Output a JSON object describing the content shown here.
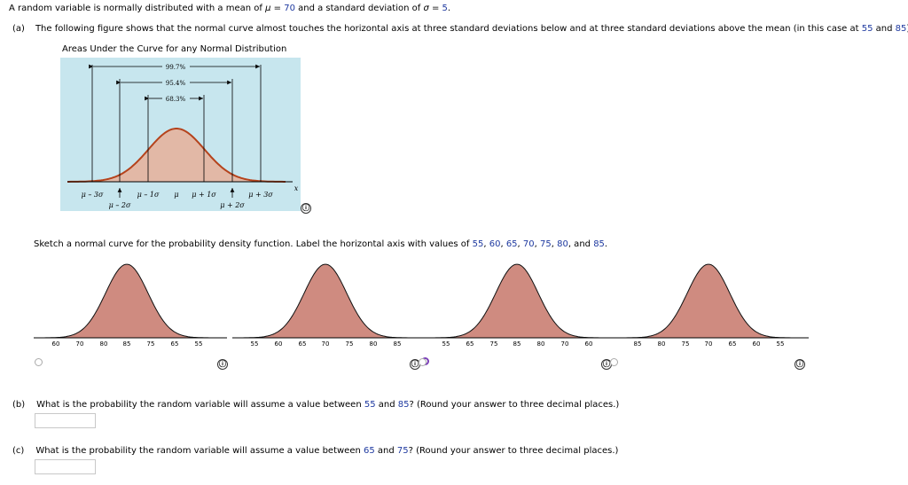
{
  "intro": {
    "prefix": "A random variable is normally distributed with a mean of ",
    "mu": "μ",
    "eq1": " = ",
    "mean": "70",
    "mid": " and a standard deviation of ",
    "sigma": "σ",
    "eq2": " = ",
    "sd": "5",
    "end": "."
  },
  "part_a": {
    "label": "(a)",
    "text": "The following figure shows that the normal curve almost touches the horizontal axis at three standard deviations below and at three standard deviations above the mean (in this case at ",
    "low": "55",
    "and": " and ",
    "high": "85",
    "end": ")."
  },
  "figure": {
    "title": "Areas Under the Curve for any Normal Distribution",
    "pct_3": "99.7%",
    "pct_2": "95.4%",
    "pct_1": "68.3%",
    "lbl_m3": "μ – 3σ",
    "lbl_m2": "μ – 2σ",
    "lbl_m1": "μ – 1σ",
    "lbl_mu": "μ",
    "lbl_p1": "μ + 1σ",
    "lbl_p2": "μ + 2σ",
    "lbl_p3": "μ + 3σ",
    "lbl_x": "x",
    "colors": {
      "panel": "#c7e6ee",
      "fill": "#e2b8a6",
      "curve": "#b5431c"
    }
  },
  "sketch": {
    "prefix": "Sketch a normal curve for the probability density function. Label the horizontal axis with values of ",
    "v1": "55",
    "sep1": ", ",
    "v2": "60",
    "sep2": ", ",
    "v3": "65",
    "sep3": ", ",
    "v4": "70",
    "sep4": ", ",
    "v5": "75",
    "sep5": ", ",
    "v6": "80",
    "sep6": ", and ",
    "v7": "85",
    "end": "."
  },
  "options": [
    {
      "ticks": [
        "60",
        "70",
        "80",
        "85",
        "75",
        "65",
        "55"
      ],
      "selected": false
    },
    {
      "ticks": [
        "55",
        "60",
        "65",
        "70",
        "75",
        "80",
        "85"
      ],
      "selected": true
    },
    {
      "ticks": [
        "55",
        "65",
        "75",
        "85",
        "80",
        "70",
        "60"
      ],
      "selected": false
    },
    {
      "ticks": [
        "85",
        "80",
        "75",
        "70",
        "65",
        "60",
        "55"
      ],
      "selected": false
    }
  ],
  "option_colors": {
    "fill": "#cf8b80",
    "stroke": "#111111",
    "selected_radio": "#7b3fb8"
  },
  "part_b": {
    "label": "(b)",
    "prefix": "What is the probability the random variable will assume a value between ",
    "low": "55",
    "and": " and ",
    "high": "85",
    "end": "? (Round your answer to three decimal places.)",
    "answer": ""
  },
  "part_c": {
    "label": "(c)",
    "prefix": "What is the probability the random variable will assume a value between ",
    "low": "65",
    "and": " and ",
    "high": "75",
    "end": "? (Round your answer to three decimal places.)",
    "answer": ""
  },
  "info_icon": "ⓘ"
}
